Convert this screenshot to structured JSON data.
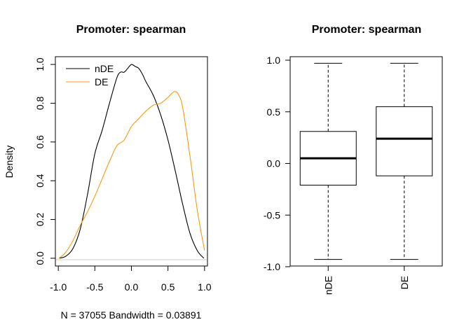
{
  "chart_data": [
    {
      "type": "line",
      "title": "Promoter: spearman",
      "xlabel": "N = 37055   Bandwidth = 0.03891",
      "ylabel": "Density",
      "xlim": [
        -1.04,
        1.04
      ],
      "ylim": [
        -0.04,
        1.04
      ],
      "x_ticks": [
        "-1.0",
        "-0.5",
        "0.0",
        "0.5",
        "1.0"
      ],
      "y_ticks": [
        "0.0",
        "0.2",
        "0.4",
        "0.6",
        "0.8",
        "1.0"
      ],
      "legend": "top-left",
      "series": [
        {
          "name": "nDE",
          "color": "#000000",
          "x": [
            -0.99,
            -0.9,
            -0.8,
            -0.7,
            -0.6,
            -0.5,
            -0.4,
            -0.3,
            -0.2,
            -0.15,
            -0.1,
            -0.05,
            0.0,
            0.05,
            0.1,
            0.15,
            0.2,
            0.3,
            0.4,
            0.5,
            0.6,
            0.7,
            0.8,
            0.9,
            0.99
          ],
          "y": [
            0.0,
            0.01,
            0.05,
            0.15,
            0.33,
            0.54,
            0.66,
            0.8,
            0.93,
            0.96,
            0.96,
            0.98,
            1.0,
            0.99,
            0.98,
            0.95,
            0.91,
            0.84,
            0.74,
            0.61,
            0.45,
            0.28,
            0.13,
            0.04,
            0.0
          ]
        },
        {
          "name": "DE",
          "color": "#f39c12",
          "x": [
            -0.99,
            -0.9,
            -0.8,
            -0.7,
            -0.6,
            -0.5,
            -0.4,
            -0.3,
            -0.2,
            -0.1,
            0.0,
            0.1,
            0.2,
            0.3,
            0.4,
            0.5,
            0.55,
            0.6,
            0.65,
            0.7,
            0.8,
            0.9,
            1.0
          ],
          "y": [
            0.0,
            0.03,
            0.09,
            0.17,
            0.24,
            0.32,
            0.41,
            0.5,
            0.58,
            0.61,
            0.68,
            0.72,
            0.76,
            0.79,
            0.8,
            0.83,
            0.85,
            0.86,
            0.84,
            0.78,
            0.53,
            0.25,
            0.04
          ]
        }
      ]
    },
    {
      "type": "box",
      "title": "Promoter: spearman",
      "categories": [
        "nDE",
        "DE"
      ],
      "ylim": [
        -1.0,
        1.0
      ],
      "y_ticks": [
        "-1.0",
        "-0.5",
        "0.0",
        "0.5",
        "1.0"
      ],
      "boxes": [
        {
          "name": "nDE",
          "min": -0.93,
          "q1": -0.21,
          "median": 0.05,
          "q3": 0.31,
          "max": 0.97
        },
        {
          "name": "DE",
          "min": -0.93,
          "q1": -0.12,
          "median": 0.24,
          "q3": 0.55,
          "max": 0.97
        }
      ]
    }
  ]
}
